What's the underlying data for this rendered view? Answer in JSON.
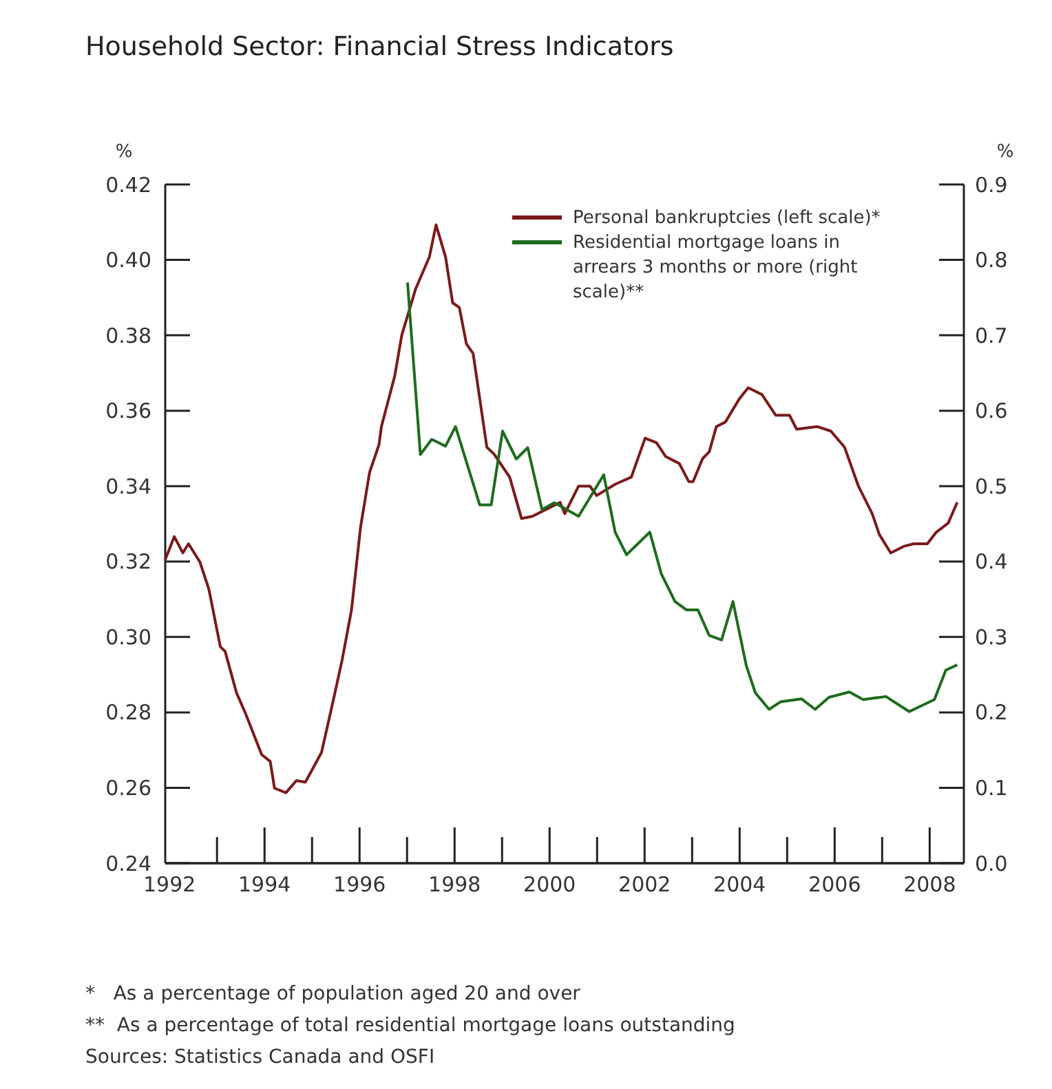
{
  "chart_data": {
    "type": "line",
    "title": "Household Sector: Financial Stress Indicators",
    "ylabel": "%",
    "y2label": "%",
    "xlim": [
      1991.91,
      2008.72
    ],
    "xticks": [
      1992,
      1994,
      1996,
      1998,
      2000,
      2002,
      2004,
      2006,
      2008
    ],
    "ylim": [
      0.24,
      0.42
    ],
    "yticks": [
      {
        "value": 0.24,
        "label": "0.24"
      },
      {
        "value": 0.26,
        "label": "0.26"
      },
      {
        "value": 0.28,
        "label": "0.28"
      },
      {
        "value": 0.3,
        "label": "0.30"
      },
      {
        "value": 0.32,
        "label": "0.32"
      },
      {
        "value": 0.34,
        "label": "0.34"
      },
      {
        "value": 0.36,
        "label": "0.36"
      },
      {
        "value": 0.38,
        "label": "0.38"
      },
      {
        "value": 0.4,
        "label": "0.40"
      },
      {
        "value": 0.42,
        "label": "0.42"
      }
    ],
    "y2lim": [
      0,
      0.9
    ],
    "y2ticks": [
      {
        "value": 0,
        "label": "0.0"
      },
      {
        "value": 0.1,
        "label": "0.1"
      },
      {
        "value": 0.2,
        "label": "0.2"
      },
      {
        "value": 0.3,
        "label": "0.3"
      },
      {
        "value": 0.4,
        "label": "0.4"
      },
      {
        "value": 0.5,
        "label": "0.5"
      },
      {
        "value": 0.6,
        "label": "0.6"
      },
      {
        "value": 0.7,
        "label": "0.7"
      },
      {
        "value": 0.8,
        "label": "0.8"
      },
      {
        "value": 0.9,
        "label": "0.9"
      }
    ],
    "legend": "top right",
    "line_style": "solid",
    "series": [
      {
        "name": "Personal bankruptcies (left scale)*",
        "color": "#7a1a1a",
        "x": [
          1991.91,
          1992.1,
          1992.28,
          1992.4,
          1992.64,
          1992.83,
          1993.07,
          1993.17,
          1993.41,
          1993.6,
          1993.94,
          1994.12,
          1994.21,
          1994.45,
          1994.67,
          1994.86,
          1995.2,
          1995.44,
          1995.63,
          1995.83,
          1996.02,
          1996.21,
          1996.41,
          1996.46,
          1996.74,
          1996.89,
          1997.18,
          1997.47,
          1997.61,
          1997.81,
          1997.96,
          1998.1,
          1998.25,
          1998.39,
          1998.68,
          1998.83,
          1999.16,
          1999.41,
          1999.64,
          2000.03,
          2000.22,
          2000.32,
          2000.61,
          2000.85,
          2000.99,
          2001.38,
          2001.72,
          2002.01,
          2002.25,
          2002.44,
          2002.73,
          2002.93,
          2003.02,
          2003.22,
          2003.36,
          2003.51,
          2003.7,
          2003.99,
          2004.18,
          2004.47,
          2004.76,
          2005.05,
          2005.2,
          2005.63,
          2005.92,
          2006.21,
          2006.5,
          2006.79,
          2006.94,
          2007.18,
          2007.47,
          2007.66,
          2007.95,
          2008.14,
          2008.39,
          2008.58
        ],
        "values": [
          0.3205,
          0.3266,
          0.3223,
          0.3247,
          0.3199,
          0.3126,
          0.2974,
          0.2962,
          0.2852,
          0.2797,
          0.2688,
          0.267,
          0.2599,
          0.2587,
          0.2619,
          0.2615,
          0.2694,
          0.2828,
          0.2937,
          0.3071,
          0.329,
          0.3436,
          0.351,
          0.3558,
          0.3692,
          0.3801,
          0.3923,
          0.4008,
          0.4093,
          0.4008,
          0.3886,
          0.3874,
          0.3777,
          0.3752,
          0.3503,
          0.3485,
          0.3424,
          0.3314,
          0.332,
          0.3345,
          0.3357,
          0.3327,
          0.34,
          0.34,
          0.3375,
          0.3405,
          0.3424,
          0.3527,
          0.3515,
          0.3479,
          0.346,
          0.3412,
          0.3412,
          0.3473,
          0.3491,
          0.3558,
          0.357,
          0.3631,
          0.3661,
          0.3643,
          0.3588,
          0.3588,
          0.3551,
          0.3558,
          0.3546,
          0.3503,
          0.34,
          0.3327,
          0.3272,
          0.3223,
          0.3241,
          0.3247,
          0.3247,
          0.3278,
          0.3302,
          0.3357
        ]
      },
      {
        "name": "Residential mortgage loans in arrears 3 months or more (right scale)**",
        "color": "#1f6b1f",
        "axis": "y2",
        "x": [
          1997.01,
          1997.28,
          1997.52,
          1997.81,
          1998.02,
          1998.53,
          1998.77,
          1999.01,
          1999.3,
          1999.54,
          1999.84,
          2000.1,
          2000.61,
          2001.14,
          2001.38,
          2001.62,
          2002.11,
          2002.35,
          2002.64,
          2002.88,
          2003.12,
          2003.36,
          2003.62,
          2003.86,
          2004.14,
          2004.33,
          2004.62,
          2004.86,
          2005.3,
          2005.59,
          2005.88,
          2006.31,
          2006.6,
          2007.08,
          2007.57,
          2008.1,
          2008.34,
          2008.58
        ],
        "values": [
          0.77,
          0.542,
          0.562,
          0.553,
          0.579,
          0.475,
          0.475,
          0.573,
          0.536,
          0.551,
          0.469,
          0.478,
          0.46,
          0.515,
          0.439,
          0.409,
          0.439,
          0.384,
          0.347,
          0.336,
          0.336,
          0.302,
          0.296,
          0.347,
          0.262,
          0.226,
          0.204,
          0.214,
          0.218,
          0.204,
          0.22,
          0.227,
          0.217,
          0.221,
          0.201,
          0.217,
          0.256,
          0.263
        ]
      }
    ],
    "annotations": [
      "*   As a percentage of population aged 20 and over",
      "**  As a percentage of total residential mortgage loans outstanding",
      "Sources: Statistics Canada and OSFI"
    ]
  }
}
